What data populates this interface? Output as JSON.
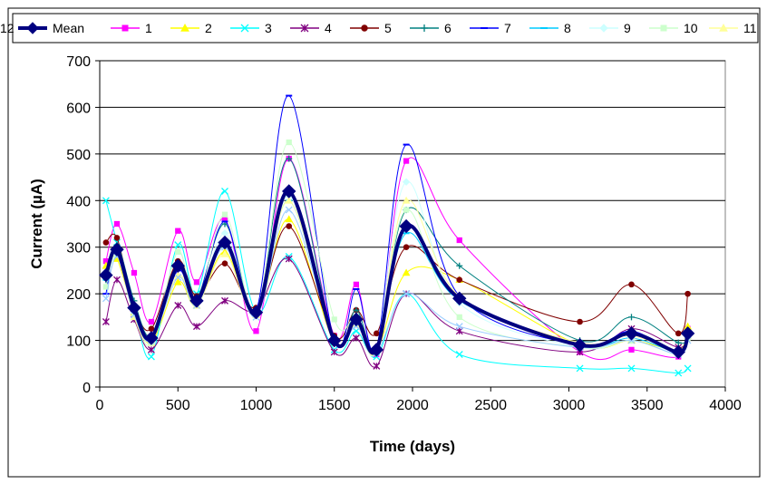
{
  "chart_data": {
    "type": "line",
    "xlabel": "Time (days)",
    "ylabel": "Current (µA)",
    "xlim": [
      0,
      4000
    ],
    "ylim": [
      0,
      700
    ],
    "x_ticks": [
      0,
      500,
      1000,
      1500,
      2000,
      2500,
      3000,
      3500,
      4000
    ],
    "y_ticks": [
      0,
      100,
      200,
      300,
      400,
      500,
      600,
      700
    ],
    "grid": "horizontal",
    "legend_position": "top",
    "x": [
      40,
      110,
      220,
      330,
      500,
      620,
      800,
      1000,
      1210,
      1500,
      1640,
      1770,
      1960,
      2300,
      3070,
      3400,
      3700,
      3760
    ],
    "series": [
      {
        "name": "Mean",
        "color": "#000080",
        "marker": "diamond",
        "values": [
          240,
          295,
          170,
          105,
          260,
          185,
          310,
          160,
          420,
          100,
          145,
          80,
          345,
          190,
          90,
          115,
          75,
          115
        ]
      },
      {
        "name": "1",
        "color": "#FF00FF",
        "marker": "square",
        "values": [
          270,
          350,
          245,
          140,
          335,
          225,
          360,
          120,
          490,
          110,
          220,
          70,
          485,
          315,
          75,
          80,
          65,
          125
        ]
      },
      {
        "name": "2",
        "color": "#FFFF00",
        "marker": "triangle",
        "values": [
          260,
          275,
          160,
          95,
          225,
          175,
          290,
          155,
          360,
          95,
          140,
          80,
          245,
          230,
          90,
          100,
          80,
          130
        ]
      },
      {
        "name": "3",
        "color": "#00FFFF",
        "marker": "x",
        "values": [
          400,
          310,
          170,
          65,
          305,
          200,
          420,
          160,
          280,
          80,
          120,
          65,
          200,
          70,
          40,
          40,
          30,
          40
        ]
      },
      {
        "name": "4",
        "color": "#800080",
        "marker": "star",
        "values": [
          140,
          230,
          145,
          80,
          175,
          130,
          185,
          165,
          275,
          75,
          105,
          45,
          200,
          120,
          75,
          125,
          85,
          110
        ]
      },
      {
        "name": "5",
        "color": "#800000",
        "marker": "circle",
        "values": [
          310,
          320,
          175,
          125,
          270,
          195,
          265,
          170,
          345,
          110,
          165,
          115,
          300,
          230,
          140,
          220,
          115,
          200
        ]
      },
      {
        "name": "6",
        "color": "#008080",
        "marker": "plus",
        "values": [
          230,
          305,
          185,
          110,
          255,
          190,
          350,
          165,
          490,
          100,
          165,
          85,
          380,
          260,
          100,
          150,
          95,
          110
        ]
      },
      {
        "name": "7",
        "color": "#0000FF",
        "marker": "dash",
        "values": [
          200,
          300,
          165,
          100,
          250,
          185,
          355,
          165,
          625,
          100,
          210,
          85,
          520,
          195,
          90,
          120,
          70,
          110
        ]
      },
      {
        "name": "8",
        "color": "#00CCFF",
        "marker": "dash",
        "values": [
          230,
          290,
          160,
          110,
          255,
          180,
          305,
          160,
          400,
          100,
          140,
          80,
          330,
          185,
          90,
          105,
          75,
          110
        ]
      },
      {
        "name": "9",
        "color": "#CCFFFF",
        "marker": "diamond",
        "values": [
          235,
          290,
          160,
          105,
          260,
          180,
          330,
          160,
          410,
          100,
          140,
          80,
          440,
          180,
          85,
          100,
          70,
          105
        ]
      },
      {
        "name": "10",
        "color": "#CCFFCC",
        "marker": "square",
        "values": [
          215,
          285,
          155,
          95,
          290,
          175,
          370,
          160,
          525,
          145,
          150,
          75,
          380,
          150,
          85,
          100,
          70,
          105
        ]
      },
      {
        "name": "11",
        "color": "#FFFF99",
        "marker": "triangle",
        "values": [
          240,
          290,
          150,
          100,
          240,
          175,
          285,
          155,
          400,
          100,
          135,
          80,
          400,
          195,
          95,
          110,
          75,
          110
        ]
      },
      {
        "name": "12",
        "color": "#99CCFF",
        "marker": "x",
        "values": [
          190,
          280,
          155,
          100,
          235,
          175,
          300,
          150,
          380,
          100,
          130,
          75,
          200,
          130,
          85,
          100,
          70,
          100
        ]
      }
    ]
  }
}
